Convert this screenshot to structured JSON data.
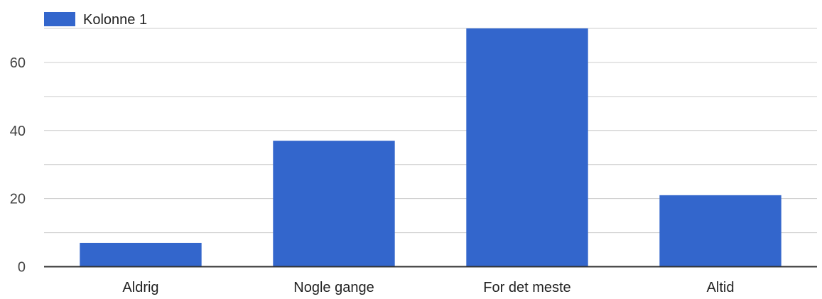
{
  "chart_data": {
    "type": "bar",
    "categories": [
      "Aldrig",
      "Nogle gange",
      "For det meste",
      "Altid"
    ],
    "series": [
      {
        "name": "Kolonne 1",
        "color": "#3366cc",
        "values": [
          7,
          37,
          70,
          21
        ]
      }
    ],
    "ylim": [
      0,
      70
    ],
    "y_ticks": [
      0,
      20,
      40,
      60
    ],
    "y_minor_ticks": [
      10,
      30,
      50,
      70
    ],
    "grid": true,
    "legend_position": "top-left",
    "title": "",
    "xlabel": "",
    "ylabel": ""
  }
}
